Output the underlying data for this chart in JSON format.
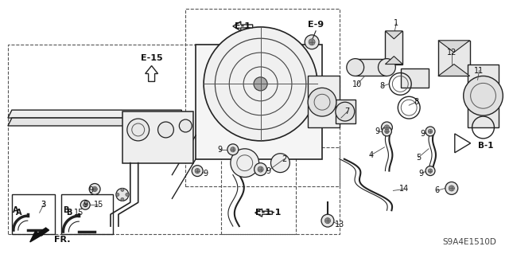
{
  "bg_color": "#ffffff",
  "line_color": "#222222",
  "diagram_code": "S9A4E1510D",
  "figsize": [
    6.4,
    3.19
  ],
  "dpi": 100,
  "labels": {
    "E15": "E-15",
    "E1": "E-1",
    "E9": "E-9",
    "E11": "E-1-1",
    "B1": "B-1",
    "diag_code": "S9A4E1510D"
  }
}
